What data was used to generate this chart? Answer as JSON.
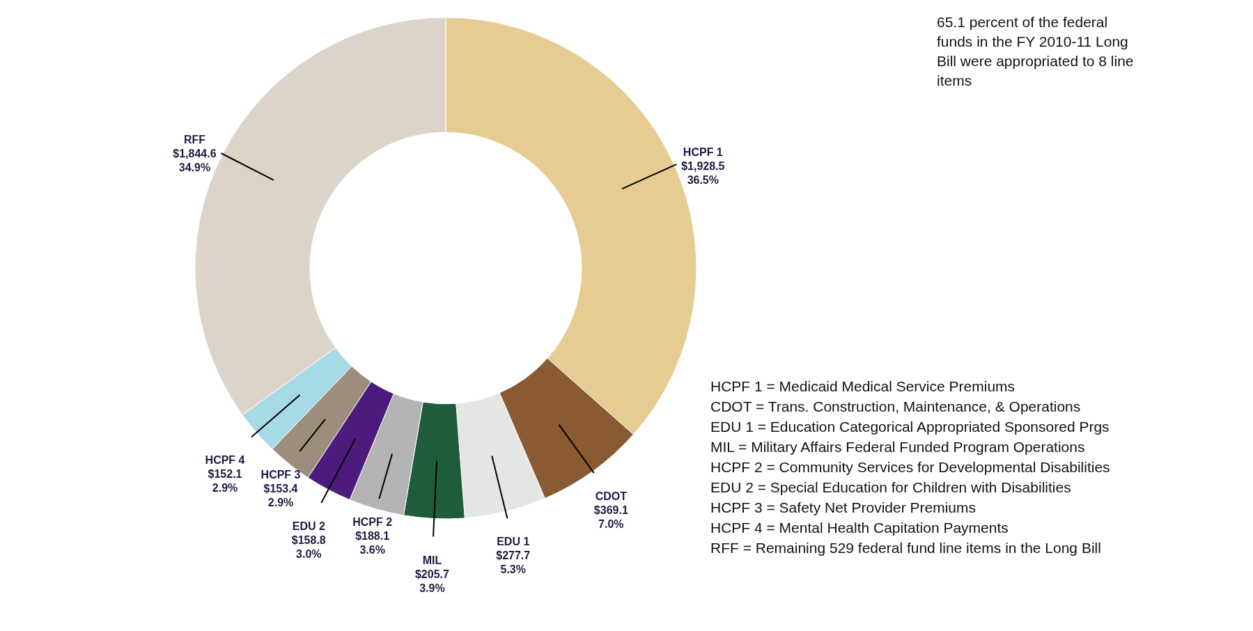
{
  "chart_data": {
    "type": "donut",
    "categories": [
      "HCPF 1",
      "CDOT",
      "EDU 1",
      "MIL",
      "HCPF 2",
      "EDU 2",
      "HCPF 3",
      "HCPF 4",
      "RFF"
    ],
    "values": [
      1928.5,
      369.1,
      277.7,
      205.7,
      188.1,
      158.8,
      153.4,
      152.1,
      1844.6
    ],
    "value_labels": [
      "$1,928.5\n36.5%",
      "$369.1\n7.0%",
      "$277.7\n5.3%",
      "$205.7\n3.9%",
      "$188.1\n3.6%",
      "$158.8\n3.0%",
      "$153.4\n2.9%",
      "$152.1\n2.9%",
      "$1,844.6\n34.9%"
    ],
    "colors": [
      "#e6cc92",
      "#8a5b32",
      "#e4e6e4",
      "#1f5c3c",
      "#b4b4b6",
      "#4c1b7c",
      "#9c8e7c",
      "#a6dae4",
      "#ddd4c9"
    ],
    "annotations": [
      "65.1 percent of the federal funds in the FY 2010-11 Long Bill were appropriated to 8 line items",
      "HCPF 1 = Medicaid Medical Service Premiums",
      "CDOT = Trans. Construction, Maintenance, & Operations",
      "EDU 1 = Education Categorical Appropriated Sponsored Prgs",
      "MIL = Military Affairs Federal Funded Program Operations",
      "HCPF 2 = Community Services for Developmental Disabilities",
      "EDU 2 = Special Education for Children with Disabilities",
      "HCPF 3 = Safety Net Provider Premiums",
      "HCPF 4 = Mental Health Capitation Payments",
      "RFF = Remaining 529 federal fund line items in the Long Bill"
    ]
  }
}
